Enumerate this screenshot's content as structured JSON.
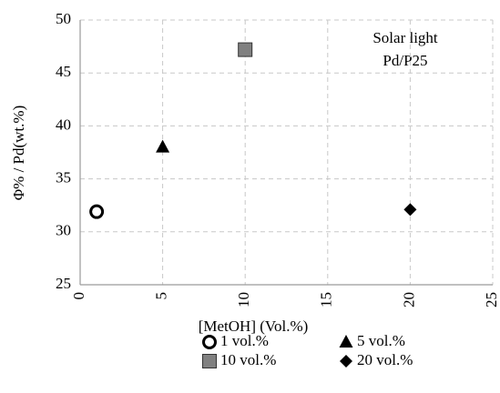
{
  "chart_data": {
    "type": "scatter",
    "x_label": "[MetOH] (Vol.%)",
    "y_label": "Φ% / Pd(wt.%)",
    "annotations": [
      "Solar light",
      "Pd/P25"
    ],
    "xlim": [
      0,
      25
    ],
    "xticks": [
      0,
      5,
      10,
      15,
      20,
      25
    ],
    "ylim": [
      25,
      50
    ],
    "yticks": [
      25,
      30,
      35,
      40,
      45,
      50
    ],
    "grid": true,
    "legend": "bottom",
    "series": [
      {
        "name": "1 vol.%",
        "color": "#000000",
        "marker": "circle-open",
        "x": [
          1
        ],
        "values": [
          31.9
        ]
      },
      {
        "name": "5 vol.%",
        "color": "#000000",
        "marker": "triangle",
        "x": [
          5
        ],
        "values": [
          38
        ]
      },
      {
        "name": "10 vol.%",
        "color": "#808080",
        "marker": "square",
        "x": [
          10
        ],
        "values": [
          47.2
        ]
      },
      {
        "name": "20 vol.%",
        "color": "#000000",
        "marker": "diamond",
        "x": [
          20
        ],
        "values": [
          32.1
        ]
      }
    ]
  }
}
